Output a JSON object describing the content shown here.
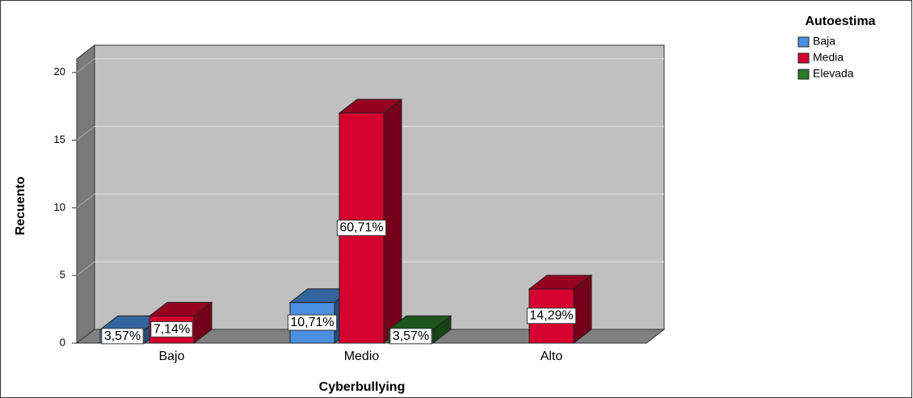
{
  "chart_data": {
    "type": "bar3d",
    "x_label": "Cyberbullying",
    "y_label": "Recuento",
    "categories": [
      "Bajo",
      "Medio",
      "Alto"
    ],
    "legend_title": "Autoestima",
    "series": [
      {
        "name": "Baja",
        "color": "#4a8fe0",
        "values": [
          1,
          3,
          null
        ],
        "value_labels": [
          "3,57%",
          "10,71%",
          null
        ]
      },
      {
        "name": "Media",
        "color": "#d6002f",
        "values": [
          2,
          17,
          4
        ],
        "value_labels": [
          "7,14%",
          "60,71%",
          "14,29%"
        ]
      },
      {
        "name": "Elevada",
        "color": "#2a7a2a",
        "values": [
          null,
          1,
          null
        ],
        "value_labels": [
          null,
          "3,57%",
          null
        ]
      }
    ],
    "ylim": [
      0,
      21
    ],
    "yticks": [
      0,
      5,
      10,
      15,
      20
    ],
    "grid": true,
    "legend": "top-right"
  }
}
